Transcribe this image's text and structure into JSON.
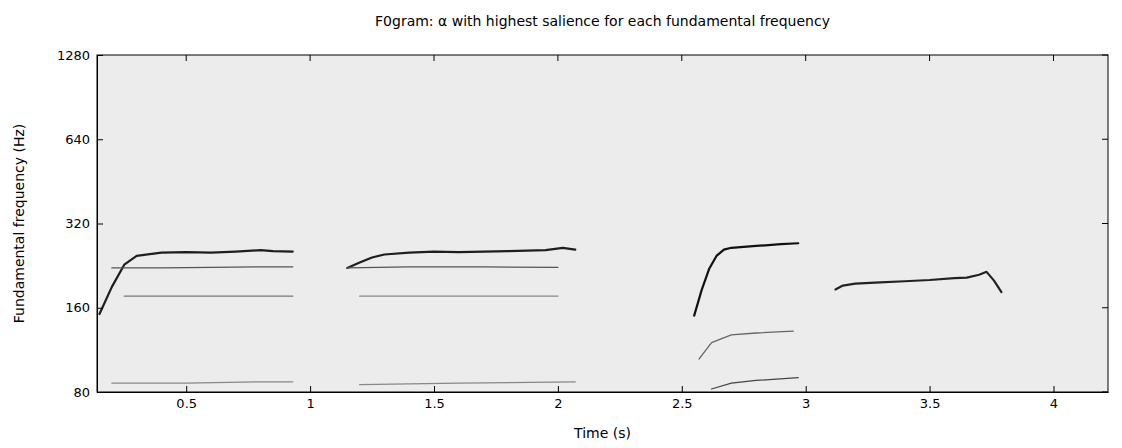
{
  "chart_data": {
    "type": "line",
    "title": "F0gram: α with highest salience for each fundamental frequency",
    "x_label": "Time (s)",
    "y_label": "Fundamental frequency (Hz)",
    "log": "y",
    "grid": false,
    "xlim": [
      0.14,
      4.22
    ],
    "xticks": [
      0.5,
      1,
      1.5,
      2,
      2.5,
      3,
      3.5,
      4
    ],
    "ylim": [
      80,
      1280
    ],
    "yticks": [
      80,
      160,
      320,
      640,
      1280
    ],
    "series": [
      {
        "color": "#1e1e1e",
        "x": [
          0.15,
          0.2,
          0.25,
          0.3,
          0.4,
          0.5,
          0.6,
          0.7,
          0.8,
          0.85,
          0.93
        ],
        "values": [
          152,
          190,
          228,
          245,
          252,
          253,
          252,
          254,
          257,
          255,
          254
        ]
      },
      {
        "color": "#555555",
        "x": [
          0.2,
          0.4,
          0.6,
          0.8,
          0.93
        ],
        "values": [
          222,
          222,
          223,
          224,
          224
        ]
      },
      {
        "color": "#777777",
        "x": [
          0.25,
          0.5,
          0.7,
          0.93
        ],
        "values": [
          176,
          176,
          176,
          176
        ]
      },
      {
        "color": "#888888",
        "x": [
          0.2,
          0.5,
          0.8,
          0.93
        ],
        "values": [
          86,
          86,
          87,
          87
        ]
      },
      {
        "color": "#1e1e1e",
        "x": [
          1.15,
          1.2,
          1.25,
          1.3,
          1.4,
          1.5,
          1.6,
          1.8,
          1.95,
          2.02,
          2.07
        ],
        "values": [
          222,
          232,
          242,
          248,
          252,
          254,
          253,
          255,
          257,
          262,
          258
        ]
      },
      {
        "color": "#555555",
        "x": [
          1.15,
          1.4,
          1.7,
          2.0
        ],
        "values": [
          222,
          224,
          224,
          223
        ]
      },
      {
        "color": "#888888",
        "x": [
          1.2,
          1.6,
          2.0
        ],
        "values": [
          176,
          176,
          176
        ]
      },
      {
        "color": "#888888",
        "x": [
          1.2,
          1.6,
          2.07
        ],
        "values": [
          85,
          86,
          87
        ]
      },
      {
        "color": "#111111",
        "x": [
          2.55,
          2.58,
          2.61,
          2.64,
          2.67,
          2.7,
          2.75,
          2.8,
          2.9,
          2.97
        ],
        "values": [
          150,
          185,
          220,
          245,
          258,
          262,
          264,
          266,
          270,
          272
        ]
      },
      {
        "color": "#666666",
        "x": [
          2.57,
          2.62,
          2.7,
          2.8,
          2.95
        ],
        "values": [
          105,
          120,
          128,
          130,
          132
        ]
      },
      {
        "color": "#444444",
        "x": [
          2.62,
          2.7,
          2.8,
          2.97
        ],
        "values": [
          82,
          86,
          88,
          90
        ]
      },
      {
        "color": "#222222",
        "x": [
          3.12,
          3.15,
          3.2,
          3.3,
          3.4,
          3.5,
          3.6,
          3.65,
          3.7,
          3.73,
          3.76,
          3.79
        ],
        "values": [
          186,
          192,
          195,
          197,
          199,
          201,
          204,
          205,
          210,
          215,
          200,
          182
        ]
      }
    ]
  }
}
